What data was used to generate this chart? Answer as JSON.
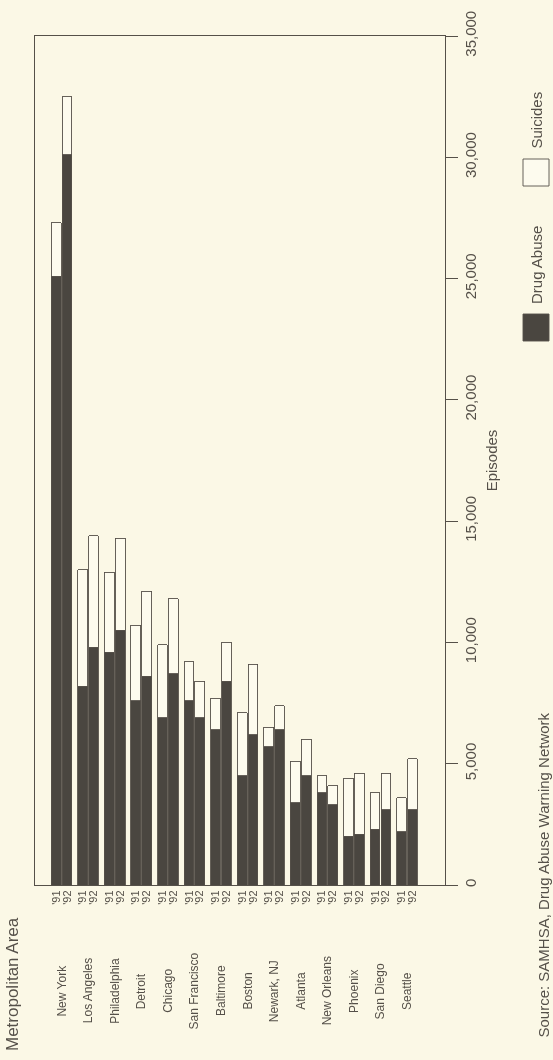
{
  "chart_data": {
    "type": "bar",
    "title": "Metropolitan Area",
    "ylabel": "Episodes",
    "stacked": true,
    "categories": [
      "'91",
      "'92",
      "'91",
      "'92",
      "'91",
      "'92",
      "'91",
      "'92",
      "'91",
      "'92",
      "'91",
      "'92",
      "'91",
      "'92",
      "'91",
      "'92",
      "'91",
      "'92",
      "'91",
      "'92",
      "'91",
      "'92",
      "'91",
      "'92",
      "'91",
      "'92",
      "'91",
      "'92"
    ],
    "series": [
      {
        "name": "Drug Abuse",
        "color": "#4a4640",
        "values": [
          25100,
          30100,
          8200,
          9800,
          9600,
          10500,
          7600,
          8600,
          6900,
          8700,
          7600,
          6900,
          6400,
          8400,
          4500,
          6200,
          5700,
          6400,
          3400,
          4500,
          3800,
          3300,
          2000,
          2100,
          2300,
          3100,
          2200,
          3100
        ]
      },
      {
        "name": "Suicides",
        "color": "#fdfbee",
        "values": [
          2200,
          2400,
          4800,
          4600,
          3300,
          3800,
          3100,
          3500,
          3000,
          3100,
          1600,
          1500,
          1300,
          1600,
          2600,
          2900,
          800,
          1000,
          1700,
          1500,
          700,
          800,
          2400,
          2500,
          1500,
          1500,
          1400,
          2100
        ]
      }
    ],
    "ylim": [
      0,
      35000
    ],
    "yticks": [
      0,
      {
        "value": 5000,
        "label": "5,000"
      },
      {
        "value": 10000,
        "label": "10,000"
      },
      {
        "value": 15000,
        "label": "15,000"
      },
      {
        "value": 20000,
        "label": "20,000"
      },
      {
        "value": 25000,
        "label": "25,000"
      },
      {
        "value": 30000,
        "label": "30,000"
      },
      {
        "value": 35000,
        "label": "35,000"
      }
    ],
    "grid": false,
    "legend": "top right",
    "annotations": [
      "New York",
      "Los Angeles",
      "Philadelphia",
      "Detroit",
      "Chicago",
      "San Francisco",
      "Baltimore",
      "Boston",
      "Newark, NJ",
      "Atlanta",
      "New Orleans",
      "Phoenix",
      "San Diego",
      "Seattle",
      "Source: SAMHSA, Drug Abuse Warning Network"
    ]
  }
}
